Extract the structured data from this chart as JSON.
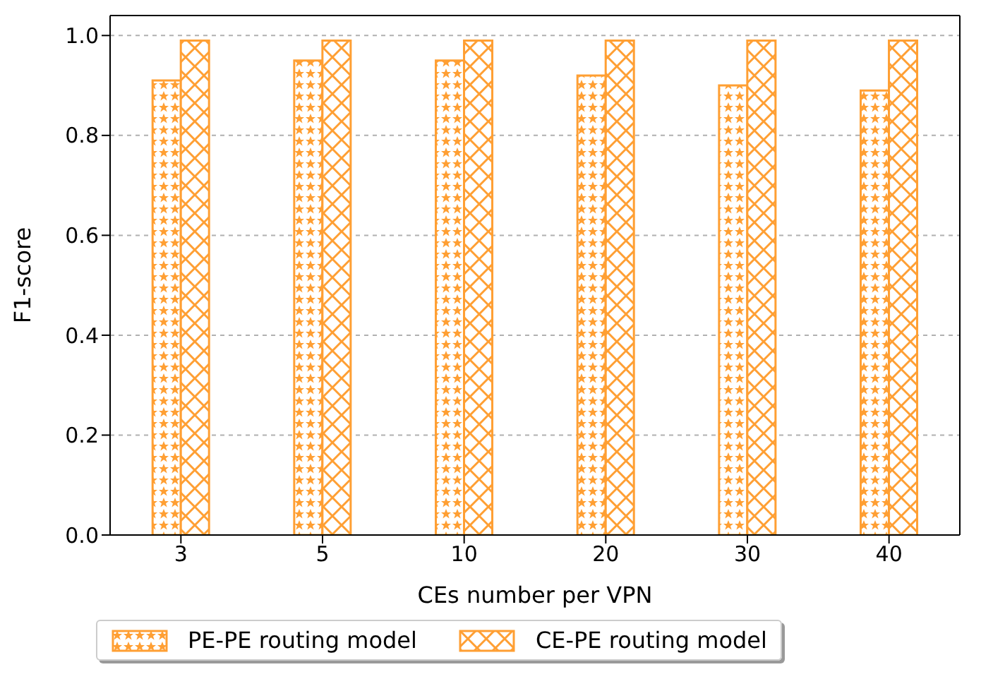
{
  "chart_data": {
    "type": "bar",
    "xlabel": "CEs number per VPN",
    "ylabel": "F1-score",
    "categories": [
      "3",
      "5",
      "10",
      "20",
      "30",
      "40"
    ],
    "series": [
      {
        "name": "PE-PE routing model",
        "color": "#ff9f33",
        "values": [
          0.91,
          0.95,
          0.95,
          0.92,
          0.9,
          0.89
        ]
      },
      {
        "name": "CE-PE routing model",
        "color": "#ff9f33",
        "values": [
          0.99,
          0.99,
          0.99,
          0.99,
          0.99,
          0.99
        ]
      }
    ],
    "ylim": [
      0,
      1.04
    ],
    "yticks": [
      {
        "value": 0,
        "label": "0.0"
      },
      {
        "value": 0.2,
        "label": "0.2"
      },
      {
        "value": 0.4,
        "label": "0.4"
      },
      {
        "value": 0.6,
        "label": "0.6"
      },
      {
        "value": 0.8,
        "label": "0.8"
      },
      {
        "value": 1,
        "label": "1.0"
      }
    ],
    "grid": "y",
    "legend": "bottom"
  }
}
